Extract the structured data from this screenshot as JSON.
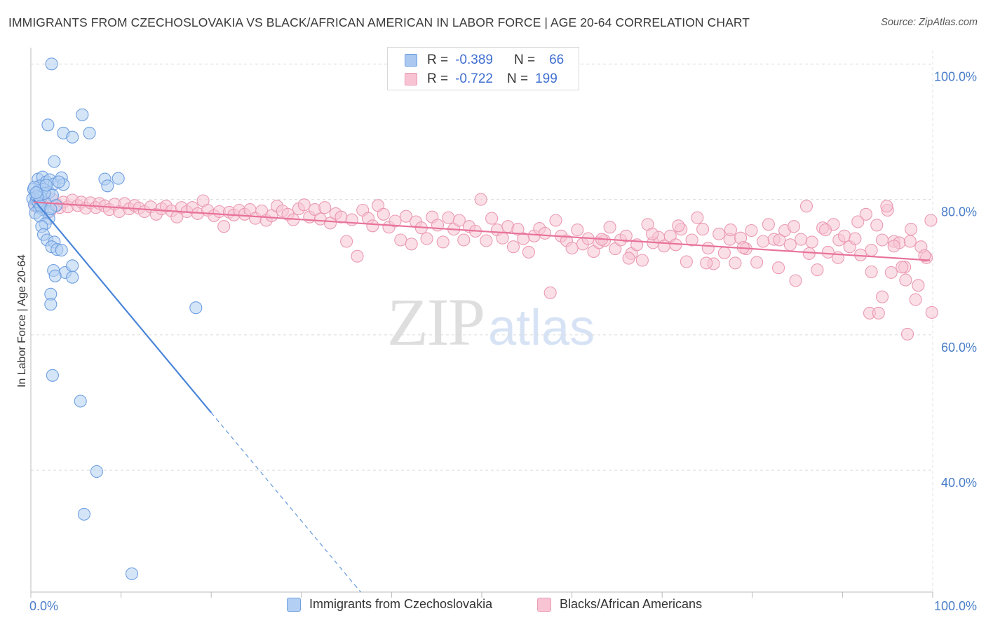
{
  "header": {
    "title": "IMMIGRANTS FROM CZECHOSLOVAKIA VS BLACK/AFRICAN AMERICAN IN LABOR FORCE | AGE 20-64 CORRELATION CHART",
    "source": "Source: ZipAtlas.com"
  },
  "watermark": {
    "zip": "ZIP",
    "atlas": "atlas"
  },
  "legend": {
    "rows": [
      {
        "r_label": "R =",
        "r_value": "-0.389",
        "n_label": "N =",
        "n_value": "66",
        "color": "#aac8f0",
        "border": "#6f9fe0"
      },
      {
        "r_label": "R =",
        "r_value": "-0.722",
        "n_label": "N =",
        "n_value": "199",
        "color": "#f8c4d4",
        "border": "#ea9ab3"
      }
    ]
  },
  "chart_data": {
    "type": "scatter",
    "title": "IMMIGRANTS FROM CZECHOSLOVAKIA VS BLACK/AFRICAN AMERICAN IN LABOR FORCE | AGE 20-64 CORRELATION CHART",
    "xlabel": "",
    "ylabel": "In Labor Force | Age 20-64",
    "xlim": [
      0,
      100
    ],
    "ylim": [
      22,
      102
    ],
    "x_tick_labels": [
      "0.0%",
      "100.0%"
    ],
    "y_ticks": [
      40,
      60,
      80,
      100
    ],
    "y_tick_labels": [
      "40.0%",
      "60.0%",
      "80.0%",
      "100.0%"
    ],
    "grid": true,
    "legend_position": "bottom",
    "series": [
      {
        "name": "Immigrants from Czechoslovakia",
        "color": "#4a86d8",
        "fill": "#b3cff3",
        "stroke": "#6f9fe0",
        "trend": {
          "x0": 0.3,
          "y0": 80.0,
          "x1": 20.0,
          "y1": 48.5,
          "dash_x1": 37.5,
          "dash_y1": 20.5
        },
        "points": [
          [
            2.3,
            100.0
          ],
          [
            5.7,
            92.5
          ],
          [
            1.9,
            91.0
          ],
          [
            3.6,
            89.8
          ],
          [
            6.5,
            89.8
          ],
          [
            4.6,
            89.2
          ],
          [
            2.6,
            85.6
          ],
          [
            0.8,
            83.0
          ],
          [
            1.3,
            83.3
          ],
          [
            1.7,
            82.6
          ],
          [
            2.1,
            82.9
          ],
          [
            2.6,
            82.3
          ],
          [
            3.4,
            83.2
          ],
          [
            3.6,
            82.2
          ],
          [
            8.2,
            83.0
          ],
          [
            8.5,
            82.0
          ],
          [
            9.7,
            83.1
          ],
          [
            1.0,
            82.0
          ],
          [
            0.3,
            81.5
          ],
          [
            0.5,
            80.7
          ],
          [
            0.9,
            81.3
          ],
          [
            1.4,
            81.5
          ],
          [
            2.0,
            81.0
          ],
          [
            2.4,
            80.6
          ],
          [
            0.2,
            80.1
          ],
          [
            0.6,
            79.9
          ],
          [
            1.1,
            80.3
          ],
          [
            1.6,
            79.5
          ],
          [
            0.4,
            79.2
          ],
          [
            0.9,
            78.8
          ],
          [
            1.3,
            78.5
          ],
          [
            1.9,
            78.2
          ],
          [
            0.5,
            78.0
          ],
          [
            1.0,
            77.5
          ],
          [
            2.0,
            77.2
          ],
          [
            1.6,
            76.4
          ],
          [
            1.2,
            76.0
          ],
          [
            1.4,
            74.8
          ],
          [
            1.8,
            74.0
          ],
          [
            2.6,
            73.7
          ],
          [
            2.3,
            73.0
          ],
          [
            2.9,
            72.6
          ],
          [
            3.4,
            72.5
          ],
          [
            3.8,
            69.2
          ],
          [
            4.6,
            70.2
          ],
          [
            2.5,
            69.5
          ],
          [
            2.7,
            68.7
          ],
          [
            4.6,
            68.5
          ],
          [
            2.2,
            66.0
          ],
          [
            2.2,
            64.5
          ],
          [
            18.3,
            64.0
          ],
          [
            2.4,
            54.0
          ],
          [
            5.5,
            50.2
          ],
          [
            7.3,
            39.8
          ],
          [
            5.9,
            33.5
          ],
          [
            11.2,
            24.7
          ],
          [
            0.8,
            79.6
          ],
          [
            1.5,
            80.9
          ],
          [
            0.4,
            81.8
          ],
          [
            2.8,
            79.1
          ],
          [
            1.7,
            82.1
          ],
          [
            0.7,
            80.4
          ],
          [
            3.1,
            82.6
          ],
          [
            1.1,
            79.0
          ],
          [
            2.2,
            78.6
          ],
          [
            0.6,
            81.0
          ]
        ]
      },
      {
        "name": "Blacks/African Americans",
        "color": "#e8729b",
        "fill": "#f8c4d4",
        "stroke": "#ea9ab3",
        "trend": {
          "x0": 0.3,
          "y0": 79.6,
          "x1": 99.7,
          "y1": 71.0
        },
        "points": [
          [
            0.5,
            79.0
          ],
          [
            0.9,
            80.1
          ],
          [
            1.2,
            78.6
          ],
          [
            1.6,
            79.4
          ],
          [
            2.1,
            78.2
          ],
          [
            2.4,
            80.0
          ],
          [
            2.9,
            79.2
          ],
          [
            3.2,
            78.8
          ],
          [
            3.6,
            79.6
          ],
          [
            4.1,
            78.9
          ],
          [
            4.6,
            79.9
          ],
          [
            5.2,
            79.1
          ],
          [
            5.6,
            79.6
          ],
          [
            6.1,
            78.7
          ],
          [
            6.6,
            79.5
          ],
          [
            7.2,
            78.8
          ],
          [
            7.6,
            79.4
          ],
          [
            8.2,
            79.0
          ],
          [
            8.7,
            78.5
          ],
          [
            9.3,
            79.3
          ],
          [
            9.8,
            78.2
          ],
          [
            10.4,
            79.4
          ],
          [
            10.9,
            78.6
          ],
          [
            11.5,
            79.1
          ],
          [
            12.0,
            78.7
          ],
          [
            12.6,
            78.2
          ],
          [
            13.3,
            78.9
          ],
          [
            13.9,
            77.8
          ],
          [
            14.5,
            78.6
          ],
          [
            15.0,
            79.0
          ],
          [
            15.6,
            78.3
          ],
          [
            16.2,
            77.4
          ],
          [
            16.7,
            78.8
          ],
          [
            17.3,
            78.2
          ],
          [
            17.9,
            78.8
          ],
          [
            18.5,
            77.9
          ],
          [
            19.1,
            79.8
          ],
          [
            19.6,
            78.4
          ],
          [
            20.3,
            77.6
          ],
          [
            20.9,
            78.2
          ],
          [
            21.4,
            76.0
          ],
          [
            22.0,
            78.1
          ],
          [
            22.5,
            77.7
          ],
          [
            23.1,
            78.4
          ],
          [
            23.7,
            77.8
          ],
          [
            24.3,
            78.5
          ],
          [
            24.9,
            77.2
          ],
          [
            25.6,
            78.3
          ],
          [
            26.1,
            76.9
          ],
          [
            26.7,
            77.6
          ],
          [
            27.3,
            79.0
          ],
          [
            27.9,
            78.3
          ],
          [
            28.5,
            77.8
          ],
          [
            29.1,
            77.0
          ],
          [
            29.7,
            78.6
          ],
          [
            30.3,
            79.2
          ],
          [
            30.9,
            77.4
          ],
          [
            31.5,
            78.5
          ],
          [
            32.1,
            77.1
          ],
          [
            32.6,
            78.8
          ],
          [
            33.2,
            76.5
          ],
          [
            33.8,
            77.9
          ],
          [
            34.4,
            77.4
          ],
          [
            35.0,
            73.8
          ],
          [
            35.6,
            77.0
          ],
          [
            36.2,
            71.6
          ],
          [
            36.8,
            78.4
          ],
          [
            37.4,
            77.2
          ],
          [
            37.9,
            76.1
          ],
          [
            38.5,
            79.1
          ],
          [
            39.1,
            77.8
          ],
          [
            39.7,
            75.9
          ],
          [
            40.4,
            76.8
          ],
          [
            41.0,
            74.0
          ],
          [
            41.6,
            77.5
          ],
          [
            42.2,
            73.4
          ],
          [
            42.7,
            76.7
          ],
          [
            43.3,
            75.8
          ],
          [
            43.9,
            74.2
          ],
          [
            44.5,
            77.4
          ],
          [
            45.1,
            76.2
          ],
          [
            45.7,
            73.7
          ],
          [
            46.3,
            77.3
          ],
          [
            46.9,
            75.6
          ],
          [
            47.5,
            76.9
          ],
          [
            48.0,
            74.0
          ],
          [
            48.6,
            76.0
          ],
          [
            49.3,
            75.3
          ],
          [
            49.9,
            80.0
          ],
          [
            50.5,
            73.9
          ],
          [
            51.1,
            77.2
          ],
          [
            51.7,
            75.5
          ],
          [
            52.3,
            74.3
          ],
          [
            52.9,
            76.0
          ],
          [
            53.5,
            73.0
          ],
          [
            54.0,
            75.6
          ],
          [
            54.6,
            74.2
          ],
          [
            55.2,
            72.2
          ],
          [
            55.8,
            74.6
          ],
          [
            56.4,
            75.7
          ],
          [
            57.0,
            75.0
          ],
          [
            57.6,
            66.2
          ],
          [
            58.2,
            76.9
          ],
          [
            58.8,
            74.6
          ],
          [
            59.4,
            73.9
          ],
          [
            60.0,
            72.8
          ],
          [
            60.6,
            75.5
          ],
          [
            61.2,
            73.4
          ],
          [
            61.8,
            74.2
          ],
          [
            62.4,
            72.3
          ],
          [
            63.0,
            73.6
          ],
          [
            63.6,
            73.9
          ],
          [
            64.2,
            75.9
          ],
          [
            64.8,
            72.7
          ],
          [
            65.4,
            74.0
          ],
          [
            66.0,
            74.6
          ],
          [
            66.6,
            72.0
          ],
          [
            67.2,
            73.3
          ],
          [
            67.8,
            71.0
          ],
          [
            68.4,
            76.3
          ],
          [
            69.0,
            73.6
          ],
          [
            69.6,
            74.4
          ],
          [
            70.2,
            73.1
          ],
          [
            70.9,
            74.6
          ],
          [
            71.5,
            73.3
          ],
          [
            72.1,
            75.6
          ],
          [
            72.7,
            70.8
          ],
          [
            73.3,
            74.0
          ],
          [
            73.9,
            77.3
          ],
          [
            74.5,
            75.6
          ],
          [
            75.1,
            72.8
          ],
          [
            75.7,
            70.5
          ],
          [
            76.3,
            74.9
          ],
          [
            76.9,
            72.1
          ],
          [
            77.5,
            74.1
          ],
          [
            78.1,
            70.6
          ],
          [
            78.7,
            74.3
          ],
          [
            79.3,
            72.7
          ],
          [
            79.9,
            75.4
          ],
          [
            80.5,
            70.7
          ],
          [
            81.2,
            73.8
          ],
          [
            81.8,
            76.3
          ],
          [
            82.4,
            74.1
          ],
          [
            83.0,
            74.0
          ],
          [
            83.6,
            75.4
          ],
          [
            84.2,
            73.3
          ],
          [
            84.8,
            68.0
          ],
          [
            85.4,
            74.1
          ],
          [
            86.0,
            79.0
          ],
          [
            86.6,
            73.7
          ],
          [
            87.2,
            69.6
          ],
          [
            87.8,
            75.8
          ],
          [
            88.4,
            72.2
          ],
          [
            89.0,
            76.3
          ],
          [
            89.6,
            74.0
          ],
          [
            90.2,
            74.6
          ],
          [
            90.8,
            73.0
          ],
          [
            91.4,
            74.2
          ],
          [
            92.0,
            71.8
          ],
          [
            92.6,
            77.8
          ],
          [
            93.2,
            72.5
          ],
          [
            93.8,
            76.2
          ],
          [
            94.4,
            74.0
          ],
          [
            95.0,
            78.4
          ],
          [
            95.7,
            73.8
          ],
          [
            96.3,
            73.6
          ],
          [
            96.9,
            70.0
          ],
          [
            97.5,
            73.8
          ],
          [
            98.1,
            65.2
          ],
          [
            98.7,
            73.0
          ],
          [
            99.3,
            71.4
          ],
          [
            99.8,
            76.9
          ],
          [
            94.9,
            79.0
          ],
          [
            93.2,
            69.3
          ],
          [
            96.6,
            70.0
          ],
          [
            97.6,
            75.6
          ],
          [
            94.4,
            65.6
          ],
          [
            95.7,
            73.1
          ],
          [
            97.0,
            68.1
          ],
          [
            93.0,
            63.2
          ],
          [
            94.0,
            63.2
          ],
          [
            98.4,
            67.3
          ],
          [
            99.1,
            71.7
          ],
          [
            95.4,
            69.2
          ],
          [
            97.2,
            60.1
          ],
          [
            99.9,
            63.3
          ],
          [
            91.7,
            76.7
          ],
          [
            89.5,
            71.4
          ],
          [
            88.1,
            75.5
          ],
          [
            86.3,
            72.0
          ],
          [
            84.6,
            76.0
          ],
          [
            82.9,
            69.9
          ],
          [
            79.0,
            72.9
          ],
          [
            77.6,
            75.5
          ],
          [
            74.9,
            70.6
          ],
          [
            71.8,
            76.1
          ],
          [
            68.9,
            74.9
          ],
          [
            66.3,
            71.3
          ],
          [
            63.3,
            74.1
          ]
        ]
      }
    ]
  },
  "bottom_legend": [
    {
      "label": "Immigrants from Czechoslovakia",
      "color": "#b3cff3",
      "border": "#6f9fe0"
    },
    {
      "label": "Blacks/African Americans",
      "color": "#f8c4d4",
      "border": "#ea9ab3"
    }
  ]
}
